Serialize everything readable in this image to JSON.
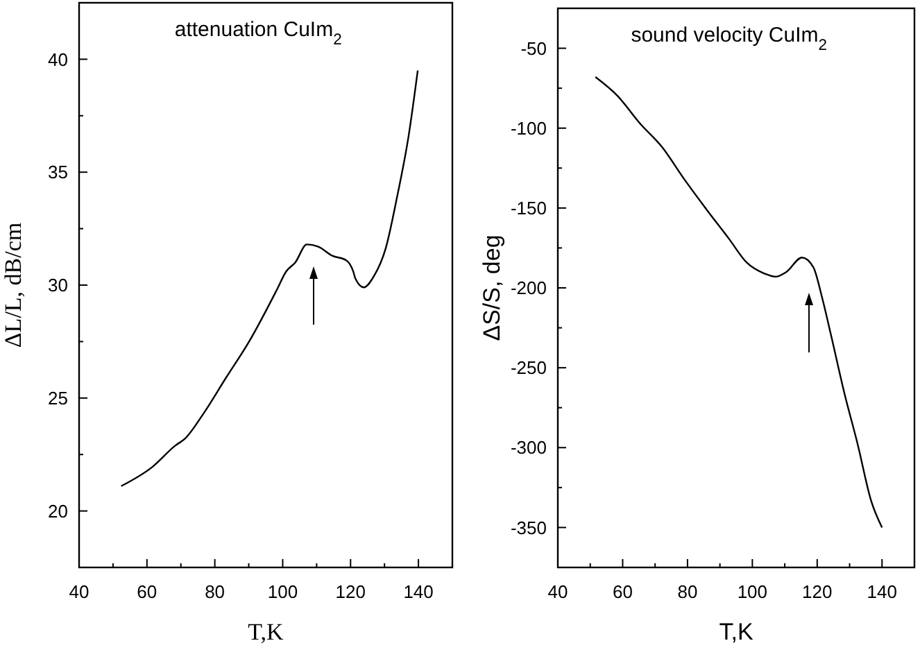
{
  "chart_data": [
    {
      "type": "line",
      "title": "attenuation CuIm$_{2}$",
      "xlabel": "T,K",
      "ylabel": "ΔL/L, dB/cm",
      "xlim": [
        40,
        150
      ],
      "ylim": [
        17.5,
        42.5
      ],
      "xticks": [
        40,
        {
          "value": 50,
          "label": null
        },
        60,
        {
          "value": 70,
          "label": null
        },
        80,
        {
          "value": 90,
          "label": null
        },
        100,
        {
          "value": 110,
          "label": null
        },
        120,
        {
          "value": 130,
          "label": null
        },
        140
      ],
      "yticks": [
        {
          "value": 17.5,
          "label": null
        },
        20,
        {
          "value": 22.5,
          "label": null
        },
        25,
        {
          "value": 27.5,
          "label": null
        },
        30,
        {
          "value": 32.5,
          "label": null
        },
        35,
        {
          "value": 37.5,
          "label": null
        },
        40
      ],
      "series": [
        {
          "color": "#000000",
          "x": [
            52.4,
            61.6,
            68.4,
            71.2,
            76.6,
            83.3,
            90.1,
            98.3,
            101,
            103.7,
            107.1,
            110.5,
            114.6,
            118.7,
            120.8,
            121.4,
            123.9,
            126.9,
            130.3,
            133.7,
            137.1,
            139.8
          ],
          "values": [
            21.1,
            21.95,
            22.9,
            23.2,
            24.3,
            25.9,
            27.5,
            29.8,
            30.6,
            31,
            31.8,
            31.7,
            31.3,
            31.1,
            30.6,
            30.3,
            29.9,
            30.4,
            31.6,
            33.9,
            36.6,
            39.5
          ]
        }
      ]
    },
    {
      "type": "line",
      "title": "sound velocity CuIm$_{2}$",
      "xlabel": "T,K",
      "ylabel": "ΔS/S, deg",
      "xlim": [
        40,
        150
      ],
      "ylim": [
        -375,
        -25
      ],
      "xticks": [
        40,
        {
          "value": 50,
          "label": null
        },
        60,
        {
          "value": 70,
          "label": null
        },
        80,
        {
          "value": 90,
          "label": null
        },
        100,
        {
          "value": 110,
          "label": null
        },
        120,
        {
          "value": 130,
          "label": null
        },
        140
      ],
      "yticks": [
        -50,
        {
          "value": -75,
          "label": null
        },
        -100,
        {
          "value": -125,
          "label": null
        },
        -150,
        {
          "value": -175,
          "label": null
        },
        -200,
        {
          "value": -225,
          "label": null
        },
        -250,
        {
          "value": -275,
          "label": null
        },
        -300,
        {
          "value": -325,
          "label": null
        },
        -350
      ],
      "series": [
        {
          "color": "#000000",
          "x": [
            51.6,
            58.5,
            65.3,
            72.2,
            79,
            85.9,
            92.7,
            98.2,
            103.7,
            107.1,
            110.5,
            115.3,
            118.8,
            121.5,
            124.2,
            128.4,
            132.5,
            136.6,
            140
          ],
          "values": [
            -68,
            -80,
            -97,
            -112,
            -132,
            -151,
            -169,
            -184,
            -191,
            -193,
            -190,
            -181,
            -187,
            -206,
            -229,
            -266,
            -298,
            -333,
            -350
          ]
        }
      ]
    }
  ]
}
